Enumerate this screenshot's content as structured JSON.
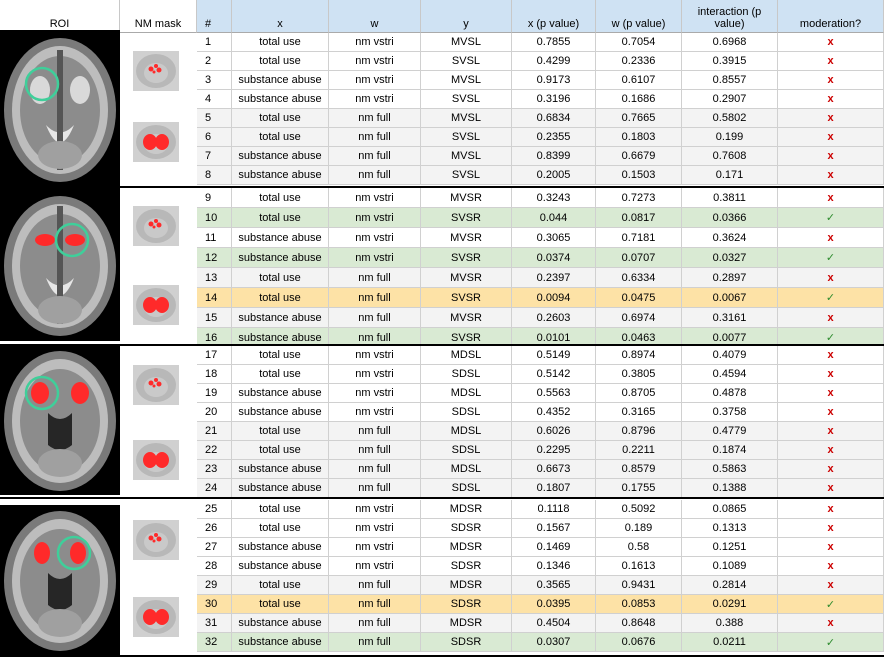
{
  "headers": {
    "roi": "ROI",
    "nm_mask": "NM mask",
    "num": "#",
    "x": "x",
    "w": "w",
    "y": "y",
    "x_p": "x (p value)",
    "w_p": "w (p value)",
    "interaction": "interaction (p value)",
    "moderation": "moderation?"
  },
  "marks": {
    "no": "x",
    "yes": "✓"
  },
  "colors": {
    "green": "#d9ead3",
    "orange": "#fde2a6",
    "grey": "#f3f3f3",
    "white": "#ffffff",
    "red_mark": "#cc0000",
    "green_mark": "#2e8b2e",
    "header_blue": "#cfe2f3"
  },
  "rows": [
    {
      "num": "1",
      "x": "total use",
      "w": "nm vstri",
      "y": "MVSL",
      "xp": "0.7855",
      "wp": "0.7054",
      "ip": "0.6968",
      "mod": "no",
      "hl": "white"
    },
    {
      "num": "2",
      "x": "total use",
      "w": "nm vstri",
      "y": "SVSL",
      "xp": "0.4299",
      "wp": "0.2336",
      "ip": "0.3915",
      "mod": "no",
      "hl": "white"
    },
    {
      "num": "3",
      "x": "substance abuse",
      "w": "nm vstri",
      "y": "MVSL",
      "xp": "0.9173",
      "wp": "0.6107",
      "ip": "0.8557",
      "mod": "no",
      "hl": "white"
    },
    {
      "num": "4",
      "x": "substance abuse",
      "w": "nm vstri",
      "y": "SVSL",
      "xp": "0.3196",
      "wp": "0.1686",
      "ip": "0.2907",
      "mod": "no",
      "hl": "white"
    },
    {
      "num": "5",
      "x": "total use",
      "w": "nm full",
      "y": "MVSL",
      "xp": "0.6834",
      "wp": "0.7665",
      "ip": "0.5802",
      "mod": "no",
      "hl": "grey"
    },
    {
      "num": "6",
      "x": "total use",
      "w": "nm full",
      "y": "SVSL",
      "xp": "0.2355",
      "wp": "0.1803",
      "ip": "0.199",
      "mod": "no",
      "hl": "grey"
    },
    {
      "num": "7",
      "x": "substance abuse",
      "w": "nm full",
      "y": "MVSL",
      "xp": "0.8399",
      "wp": "0.6679",
      "ip": "0.7608",
      "mod": "no",
      "hl": "grey"
    },
    {
      "num": "8",
      "x": "substance abuse",
      "w": "nm full",
      "y": "SVSL",
      "xp": "0.2005",
      "wp": "0.1503",
      "ip": "0.171",
      "mod": "no",
      "hl": "grey"
    },
    {
      "num": "9",
      "x": "total use",
      "w": "nm vstri",
      "y": "MVSR",
      "xp": "0.3243",
      "wp": "0.7273",
      "ip": "0.3811",
      "mod": "no",
      "hl": "white"
    },
    {
      "num": "10",
      "x": "total use",
      "w": "nm vstri",
      "y": "SVSR",
      "xp": "0.044",
      "wp": "0.0817",
      "ip": "0.0366",
      "mod": "yes",
      "hl": "green"
    },
    {
      "num": "11",
      "x": "substance abuse",
      "w": "nm vstri",
      "y": "MVSR",
      "xp": "0.3065",
      "wp": "0.7181",
      "ip": "0.3624",
      "mod": "no",
      "hl": "white"
    },
    {
      "num": "12",
      "x": "substance abuse",
      "w": "nm vstri",
      "y": "SVSR",
      "xp": "0.0374",
      "wp": "0.0707",
      "ip": "0.0327",
      "mod": "yes",
      "hl": "green"
    },
    {
      "num": "13",
      "x": "total use",
      "w": "nm full",
      "y": "MVSR",
      "xp": "0.2397",
      "wp": "0.6334",
      "ip": "0.2897",
      "mod": "no",
      "hl": "grey"
    },
    {
      "num": "14",
      "x": "total use",
      "w": "nm full",
      "y": "SVSR",
      "xp": "0.0094",
      "wp": "0.0475",
      "ip": "0.0067",
      "mod": "yes",
      "hl": "orange"
    },
    {
      "num": "15",
      "x": "substance abuse",
      "w": "nm full",
      "y": "MVSR",
      "xp": "0.2603",
      "wp": "0.6974",
      "ip": "0.3161",
      "mod": "no",
      "hl": "grey"
    },
    {
      "num": "16",
      "x": "substance abuse",
      "w": "nm full",
      "y": "SVSR",
      "xp": "0.0101",
      "wp": "0.0463",
      "ip": "0.0077",
      "mod": "yes",
      "hl": "green"
    },
    {
      "num": "17",
      "x": "total use",
      "w": "nm vstri",
      "y": "MDSL",
      "xp": "0.5149",
      "wp": "0.8974",
      "ip": "0.4079",
      "mod": "no",
      "hl": "white"
    },
    {
      "num": "18",
      "x": "total use",
      "w": "nm vstri",
      "y": "SDSL",
      "xp": "0.5142",
      "wp": "0.3805",
      "ip": "0.4594",
      "mod": "no",
      "hl": "white"
    },
    {
      "num": "19",
      "x": "substance abuse",
      "w": "nm vstri",
      "y": "MDSL",
      "xp": "0.5563",
      "wp": "0.8705",
      "ip": "0.4878",
      "mod": "no",
      "hl": "white"
    },
    {
      "num": "20",
      "x": "substance abuse",
      "w": "nm vstri",
      "y": "SDSL",
      "xp": "0.4352",
      "wp": "0.3165",
      "ip": "0.3758",
      "mod": "no",
      "hl": "white"
    },
    {
      "num": "21",
      "x": "total use",
      "w": "nm full",
      "y": "MDSL",
      "xp": "0.6026",
      "wp": "0.8796",
      "ip": "0.4779",
      "mod": "no",
      "hl": "grey"
    },
    {
      "num": "22",
      "x": "total use",
      "w": "nm full",
      "y": "SDSL",
      "xp": "0.2295",
      "wp": "0.2211",
      "ip": "0.1874",
      "mod": "no",
      "hl": "grey"
    },
    {
      "num": "23",
      "x": "substance abuse",
      "w": "nm full",
      "y": "MDSL",
      "xp": "0.6673",
      "wp": "0.8579",
      "ip": "0.5863",
      "mod": "no",
      "hl": "grey"
    },
    {
      "num": "24",
      "x": "substance abuse",
      "w": "nm full",
      "y": "SDSL",
      "xp": "0.1807",
      "wp": "0.1755",
      "ip": "0.1388",
      "mod": "no",
      "hl": "grey"
    },
    {
      "num": "25",
      "x": "total use",
      "w": "nm vstri",
      "y": "MDSR",
      "xp": "0.1118",
      "wp": "0.5092",
      "ip": "0.0865",
      "mod": "no",
      "hl": "white"
    },
    {
      "num": "26",
      "x": "total use",
      "w": "nm vstri",
      "y": "SDSR",
      "xp": "0.1567",
      "wp": "0.189",
      "ip": "0.1313",
      "mod": "no",
      "hl": "white"
    },
    {
      "num": "27",
      "x": "substance abuse",
      "w": "nm vstri",
      "y": "MDSR",
      "xp": "0.1469",
      "wp": "0.58",
      "ip": "0.1251",
      "mod": "no",
      "hl": "white"
    },
    {
      "num": "28",
      "x": "substance abuse",
      "w": "nm vstri",
      "y": "SDSR",
      "xp": "0.1346",
      "wp": "0.1613",
      "ip": "0.1089",
      "mod": "no",
      "hl": "white"
    },
    {
      "num": "29",
      "x": "total use",
      "w": "nm full",
      "y": "MDSR",
      "xp": "0.3565",
      "wp": "0.9431",
      "ip": "0.2814",
      "mod": "no",
      "hl": "grey"
    },
    {
      "num": "30",
      "x": "total use",
      "w": "nm full",
      "y": "SDSR",
      "xp": "0.0395",
      "wp": "0.0853",
      "ip": "0.0291",
      "mod": "yes",
      "hl": "orange"
    },
    {
      "num": "31",
      "x": "substance abuse",
      "w": "nm full",
      "y": "MDSR",
      "xp": "0.4504",
      "wp": "0.8648",
      "ip": "0.388",
      "mod": "no",
      "hl": "grey"
    },
    {
      "num": "32",
      "x": "substance abuse",
      "w": "nm full",
      "y": "SDSR",
      "xp": "0.0307",
      "wp": "0.0676",
      "ip": "0.0211",
      "mod": "yes",
      "hl": "green"
    }
  ],
  "roi_images": [
    {
      "icon": "brain-axial-ventral-striatum-left-icon"
    },
    {
      "icon": "brain-axial-ventral-striatum-right-icon"
    },
    {
      "icon": "brain-axial-dorsal-striatum-left-icon"
    },
    {
      "icon": "brain-axial-dorsal-striatum-right-icon"
    }
  ],
  "mask_images": [
    {
      "icon": "nm-vstri-mask-icon"
    },
    {
      "icon": "nm-full-mask-icon"
    }
  ]
}
